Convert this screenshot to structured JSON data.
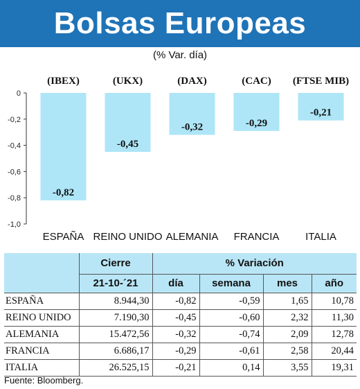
{
  "header": {
    "title": "Bolsas Europeas"
  },
  "subtitle": "(% Var. día)",
  "chart_data": {
    "type": "bar",
    "categories": [
      "ESPAÑA",
      "REINO UNIDO",
      "ALEMANIA",
      "FRANCIA",
      "ITALIA"
    ],
    "indices": [
      "(IBEX)",
      "(UKX)",
      "(DAX)",
      "(CAC)",
      "(FTSE MIB)"
    ],
    "values": [
      -0.82,
      -0.45,
      -0.32,
      -0.29,
      -0.21
    ],
    "data_labels": [
      "-0,82",
      "-0,45",
      "-0,32",
      "-0,29",
      "-0,21"
    ],
    "yticks": [
      "0",
      "-0,2",
      "-0,4",
      "-0,6",
      "-0,8",
      "-1,0"
    ],
    "ylim": [
      -1.0,
      0
    ],
    "bar_color": "#aee6f8",
    "grid": false
  },
  "table": {
    "group_headers": {
      "cierre": "Cierre",
      "variacion": "% Variación"
    },
    "columns": {
      "date": "21-10-´21",
      "dia": "día",
      "semana": "semana",
      "mes": "mes",
      "anio": "año"
    },
    "rows": [
      {
        "country": "ESPAÑA",
        "cierre": "8.944,30",
        "dia": "-0,82",
        "semana": "-0,59",
        "mes": "1,65",
        "anio": "10,78"
      },
      {
        "country": "REINO UNIDO",
        "cierre": "7.190,30",
        "dia": "-0,45",
        "semana": "-0,60",
        "mes": "2,32",
        "anio": "11,30"
      },
      {
        "country": "ALEMANIA",
        "cierre": "15.472,56",
        "dia": "-0,32",
        "semana": "-0,74",
        "mes": "2,09",
        "anio": "12,78"
      },
      {
        "country": "FRANCIA",
        "cierre": "6.686,17",
        "dia": "-0,29",
        "semana": "-0,61",
        "mes": "2,58",
        "anio": "20,44"
      },
      {
        "country": "ITALIA",
        "cierre": "26.525,15",
        "dia": "-0,21",
        "semana": "0,14",
        "mes": "3,55",
        "anio": "19,31"
      }
    ]
  },
  "footer": {
    "source": "Fuente: Bloomberg."
  },
  "colors": {
    "header_bg": "#1f73b7",
    "table_header_bg": "#b9e6f6"
  }
}
